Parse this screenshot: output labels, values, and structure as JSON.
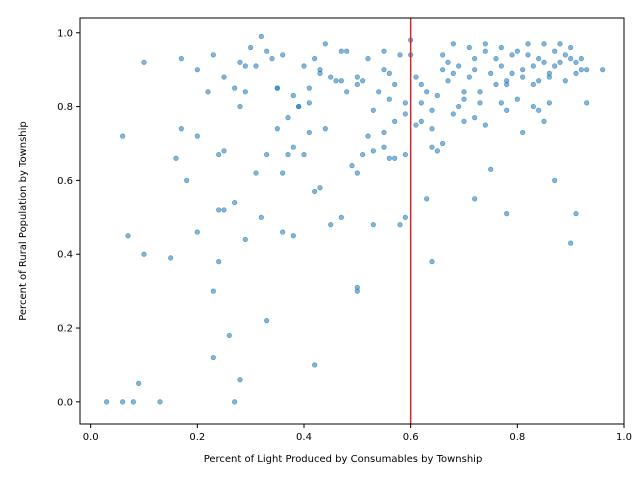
{
  "chart_data": {
    "type": "scatter",
    "title": "",
    "xlabel": "Percent of Light Produced by Consumables by Township",
    "ylabel": "Percent of  Rural Population by Township",
    "xlim": [
      -0.02,
      1.0
    ],
    "ylim": [
      -0.06,
      1.04
    ],
    "xticks": [
      0.0,
      0.2,
      0.4,
      0.6,
      0.8,
      1.0
    ],
    "xtick_labels": [
      "0.0",
      "0.2",
      "0.4",
      "0.6",
      "0.8",
      "1.0"
    ],
    "yticks": [
      0.0,
      0.2,
      0.4,
      0.6,
      0.8,
      1.0
    ],
    "ytick_labels": [
      "0.0",
      "0.2",
      "0.4",
      "0.6",
      "0.8",
      "1.0"
    ],
    "grid": false,
    "legend": "none",
    "marker_color": "#1f77b4",
    "reference_line": {
      "orientation": "vertical",
      "x": 0.6,
      "color": "#d62728"
    },
    "series": [
      {
        "points": [
          [
            0.03,
            0.0
          ],
          [
            0.06,
            0.0
          ],
          [
            0.08,
            0.0
          ],
          [
            0.13,
            0.0
          ],
          [
            0.09,
            0.05
          ],
          [
            0.28,
            0.06
          ],
          [
            0.27,
            0.0
          ],
          [
            0.23,
            0.12
          ],
          [
            0.26,
            0.18
          ],
          [
            0.33,
            0.22
          ],
          [
            0.42,
            0.1
          ],
          [
            0.23,
            0.3
          ],
          [
            0.5,
            0.31
          ],
          [
            0.5,
            0.3
          ],
          [
            0.07,
            0.45
          ],
          [
            0.1,
            0.4
          ],
          [
            0.15,
            0.39
          ],
          [
            0.2,
            0.46
          ],
          [
            0.24,
            0.38
          ],
          [
            0.29,
            0.44
          ],
          [
            0.25,
            0.52
          ],
          [
            0.27,
            0.54
          ],
          [
            0.32,
            0.5
          ],
          [
            0.36,
            0.46
          ],
          [
            0.38,
            0.45
          ],
          [
            0.45,
            0.48
          ],
          [
            0.47,
            0.5
          ],
          [
            0.53,
            0.48
          ],
          [
            0.58,
            0.48
          ],
          [
            0.59,
            0.5
          ],
          [
            0.63,
            0.55
          ],
          [
            0.64,
            0.38
          ],
          [
            0.72,
            0.55
          ],
          [
            0.75,
            0.63
          ],
          [
            0.78,
            0.51
          ],
          [
            0.87,
            0.6
          ],
          [
            0.9,
            0.43
          ],
          [
            0.91,
            0.51
          ],
          [
            0.06,
            0.72
          ],
          [
            0.1,
            0.92
          ],
          [
            0.17,
            0.74
          ],
          [
            0.2,
            0.72
          ],
          [
            0.16,
            0.66
          ],
          [
            0.18,
            0.6
          ],
          [
            0.24,
            0.67
          ],
          [
            0.25,
            0.68
          ],
          [
            0.31,
            0.62
          ],
          [
            0.33,
            0.67
          ],
          [
            0.35,
            0.74
          ],
          [
            0.37,
            0.67
          ],
          [
            0.38,
            0.69
          ],
          [
            0.39,
            0.8
          ],
          [
            0.41,
            0.73
          ],
          [
            0.41,
            0.81
          ],
          [
            0.42,
            0.57
          ],
          [
            0.43,
            0.58
          ],
          [
            0.44,
            0.74
          ],
          [
            0.4,
            0.67
          ],
          [
            0.49,
            0.64
          ],
          [
            0.5,
            0.62
          ],
          [
            0.51,
            0.67
          ],
          [
            0.53,
            0.68
          ],
          [
            0.55,
            0.69
          ],
          [
            0.56,
            0.66
          ],
          [
            0.57,
            0.66
          ],
          [
            0.57,
            0.76
          ],
          [
            0.59,
            0.78
          ],
          [
            0.61,
            0.75
          ],
          [
            0.62,
            0.76
          ],
          [
            0.64,
            0.69
          ],
          [
            0.65,
            0.68
          ],
          [
            0.66,
            0.7
          ],
          [
            0.68,
            0.78
          ],
          [
            0.7,
            0.76
          ],
          [
            0.72,
            0.77
          ],
          [
            0.74,
            0.75
          ],
          [
            0.78,
            0.79
          ],
          [
            0.81,
            0.73
          ],
          [
            0.84,
            0.79
          ],
          [
            0.85,
            0.76
          ],
          [
            0.86,
            0.81
          ],
          [
            0.93,
            0.81
          ],
          [
            0.17,
            0.93
          ],
          [
            0.2,
            0.9
          ],
          [
            0.22,
            0.84
          ],
          [
            0.23,
            0.94
          ],
          [
            0.25,
            0.88
          ],
          [
            0.27,
            0.85
          ],
          [
            0.28,
            0.8
          ],
          [
            0.28,
            0.92
          ],
          [
            0.29,
            0.84
          ],
          [
            0.29,
            0.91
          ],
          [
            0.3,
            0.96
          ],
          [
            0.31,
            0.91
          ],
          [
            0.32,
            0.99
          ],
          [
            0.33,
            0.95
          ],
          [
            0.34,
            0.93
          ],
          [
            0.35,
            0.85
          ],
          [
            0.35,
            0.85
          ],
          [
            0.36,
            0.94
          ],
          [
            0.37,
            0.77
          ],
          [
            0.38,
            0.83
          ],
          [
            0.39,
            0.8
          ],
          [
            0.4,
            0.91
          ],
          [
            0.41,
            0.85
          ],
          [
            0.42,
            0.93
          ],
          [
            0.43,
            0.9
          ],
          [
            0.43,
            0.89
          ],
          [
            0.44,
            0.97
          ],
          [
            0.45,
            0.88
          ],
          [
            0.46,
            0.87
          ],
          [
            0.47,
            0.95
          ],
          [
            0.48,
            0.95
          ],
          [
            0.48,
            0.84
          ],
          [
            0.5,
            0.86
          ],
          [
            0.5,
            0.88
          ],
          [
            0.51,
            0.87
          ],
          [
            0.52,
            0.93
          ],
          [
            0.53,
            0.79
          ],
          [
            0.54,
            0.84
          ],
          [
            0.55,
            0.9
          ],
          [
            0.55,
            0.95
          ],
          [
            0.56,
            0.89
          ],
          [
            0.56,
            0.82
          ],
          [
            0.57,
            0.86
          ],
          [
            0.58,
            0.94
          ],
          [
            0.59,
            0.81
          ],
          [
            0.6,
            0.98
          ],
          [
            0.6,
            0.94
          ],
          [
            0.61,
            0.88
          ],
          [
            0.62,
            0.86
          ],
          [
            0.62,
            0.81
          ],
          [
            0.63,
            0.84
          ],
          [
            0.64,
            0.79
          ],
          [
            0.65,
            0.83
          ],
          [
            0.66,
            0.9
          ],
          [
            0.66,
            0.94
          ],
          [
            0.67,
            0.87
          ],
          [
            0.67,
            0.92
          ],
          [
            0.68,
            0.89
          ],
          [
            0.68,
            0.97
          ],
          [
            0.69,
            0.91
          ],
          [
            0.7,
            0.82
          ],
          [
            0.7,
            0.84
          ],
          [
            0.71,
            0.96
          ],
          [
            0.71,
            0.88
          ],
          [
            0.72,
            0.93
          ],
          [
            0.72,
            0.9
          ],
          [
            0.73,
            0.84
          ],
          [
            0.73,
            0.81
          ],
          [
            0.74,
            0.97
          ],
          [
            0.74,
            0.95
          ],
          [
            0.75,
            0.89
          ],
          [
            0.76,
            0.93
          ],
          [
            0.76,
            0.86
          ],
          [
            0.77,
            0.91
          ],
          [
            0.77,
            0.96
          ],
          [
            0.78,
            0.86
          ],
          [
            0.78,
            0.87
          ],
          [
            0.79,
            0.94
          ],
          [
            0.79,
            0.89
          ],
          [
            0.8,
            0.95
          ],
          [
            0.8,
            0.82
          ],
          [
            0.81,
            0.9
          ],
          [
            0.81,
            0.88
          ],
          [
            0.82,
            0.97
          ],
          [
            0.82,
            0.94
          ],
          [
            0.83,
            0.91
          ],
          [
            0.83,
            0.86
          ],
          [
            0.84,
            0.93
          ],
          [
            0.84,
            0.87
          ],
          [
            0.85,
            0.97
          ],
          [
            0.85,
            0.92
          ],
          [
            0.86,
            0.89
          ],
          [
            0.86,
            0.88
          ],
          [
            0.87,
            0.95
          ],
          [
            0.87,
            0.91
          ],
          [
            0.88,
            0.97
          ],
          [
            0.88,
            0.92
          ],
          [
            0.89,
            0.94
          ],
          [
            0.89,
            0.87
          ],
          [
            0.9,
            0.96
          ],
          [
            0.9,
            0.93
          ],
          [
            0.91,
            0.89
          ],
          [
            0.91,
            0.92
          ],
          [
            0.92,
            0.9
          ],
          [
            0.92,
            0.93
          ],
          [
            0.93,
            0.9
          ],
          [
            0.96,
            0.9
          ],
          [
            0.55,
            0.73
          ],
          [
            0.47,
            0.87
          ],
          [
            0.36,
            0.62
          ],
          [
            0.24,
            0.52
          ],
          [
            0.52,
            0.72
          ],
          [
            0.59,
            0.67
          ],
          [
            0.64,
            0.74
          ],
          [
            0.69,
            0.8
          ],
          [
            0.77,
            0.81
          ],
          [
            0.83,
            0.8
          ]
        ]
      }
    ]
  }
}
